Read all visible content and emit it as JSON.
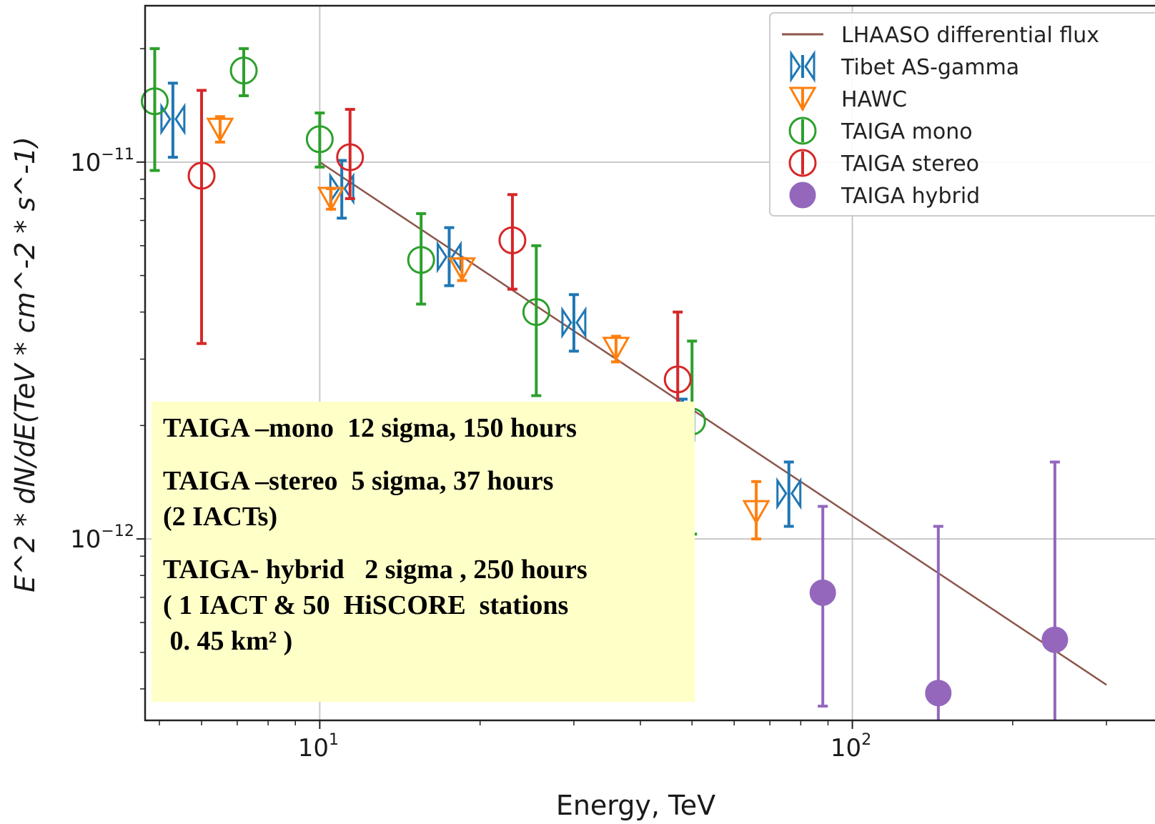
{
  "chart_data": {
    "type": "scatter",
    "xlabel": "Energy, TeV",
    "ylabel": "E^2 * dN/dE(TeV * cm^-2 * s^-1)",
    "xscale": "log",
    "yscale": "log",
    "xlim": [
      4.7,
      370
    ],
    "ylim": [
      3.3e-13,
      2.6e-11
    ],
    "xticks": [
      {
        "value": 10,
        "base": "10",
        "exp": "1"
      },
      {
        "value": 100,
        "base": "10",
        "exp": "2"
      }
    ],
    "yticks": [
      {
        "value": 1e-11,
        "base": "10",
        "exp": "−11"
      },
      {
        "value": 1e-12,
        "base": "10",
        "exp": "−12"
      }
    ],
    "grid": true,
    "legend_position": "top-right",
    "series": [
      {
        "name": "LHAASO differential flux",
        "kind": "line",
        "color": "#8c564b",
        "x": [
          10,
          300
        ],
        "y": [
          1e-11,
          4.1e-13
        ]
      },
      {
        "name": "Tibet AS-gamma",
        "kind": "tibet",
        "color": "#1f77b4",
        "points": [
          {
            "x": 5.3,
            "y": 1.3e-11,
            "lo": 1.03e-11,
            "hi": 1.62e-11
          },
          {
            "x": 11.0,
            "y": 8.5e-12,
            "lo": 7.1e-12,
            "hi": 1.01e-11
          },
          {
            "x": 17.5,
            "y": 5.6e-12,
            "lo": 4.7e-12,
            "hi": 6.7e-12
          },
          {
            "x": 30.0,
            "y": 3.75e-12,
            "lo": 3.15e-12,
            "hi": 4.45e-12
          },
          {
            "x": 48.0,
            "y": 2e-12,
            "lo": 1.72e-12,
            "hi": 2.35e-12
          },
          {
            "x": 76.0,
            "y": 1.32e-12,
            "lo": 1.08e-12,
            "hi": 1.6e-12
          }
        ]
      },
      {
        "name": "HAWC",
        "kind": "hawc",
        "color": "#ff7f0e",
        "points": [
          {
            "x": 6.5,
            "y": 1.22e-11,
            "lo": 1.13e-11,
            "hi": 1.32e-11
          },
          {
            "x": 10.5,
            "y": 8e-12,
            "lo": 7.5e-12,
            "hi": 8.5e-12
          },
          {
            "x": 18.5,
            "y": 5.2e-12,
            "lo": 4.85e-12,
            "hi": 5.55e-12
          },
          {
            "x": 36.0,
            "y": 3.2e-12,
            "lo": 2.95e-12,
            "hi": 3.45e-12
          },
          {
            "x": 66.0,
            "y": 1.18e-12,
            "lo": 1e-12,
            "hi": 1.42e-12
          }
        ]
      },
      {
        "name": "TAIGA mono",
        "kind": "open",
        "color": "#2ca02c",
        "points": [
          {
            "x": 4.9,
            "y": 1.45e-11,
            "lo": 9.5e-12,
            "hi": 2e-11
          },
          {
            "x": 7.2,
            "y": 1.75e-11,
            "lo": 1.5e-11,
            "hi": 2e-11
          },
          {
            "x": 10.0,
            "y": 1.15e-11,
            "lo": 9.7e-12,
            "hi": 1.35e-11
          },
          {
            "x": 15.5,
            "y": 5.5e-12,
            "lo": 4.2e-12,
            "hi": 7.3e-12
          },
          {
            "x": 25.5,
            "y": 4e-12,
            "lo": 2.4e-12,
            "hi": 6e-12
          },
          {
            "x": 50.0,
            "y": 2.05e-12,
            "lo": 1.03e-12,
            "hi": 3.35e-12
          }
        ]
      },
      {
        "name": "TAIGA stereo",
        "kind": "open",
        "color": "#d62728",
        "points": [
          {
            "x": 6.0,
            "y": 9.2e-12,
            "lo": 3.3e-12,
            "hi": 1.55e-11
          },
          {
            "x": 11.4,
            "y": 1.03e-11,
            "lo": 8e-12,
            "hi": 1.38e-11
          },
          {
            "x": 23.0,
            "y": 6.2e-12,
            "lo": 4.6e-12,
            "hi": 8.2e-12
          },
          {
            "x": 47.0,
            "y": 2.65e-12,
            "lo": 1.6e-12,
            "hi": 4e-12
          }
        ]
      },
      {
        "name": "TAIGA hybrid",
        "kind": "filled",
        "color": "#9467bd",
        "points": [
          {
            "x": 88.0,
            "y": 7.2e-13,
            "lo": 3.6e-13,
            "hi": 1.22e-12
          },
          {
            "x": 145.0,
            "y": 3.9e-13,
            "lo": 3.3e-13,
            "hi": 1.08e-12
          },
          {
            "x": 240.0,
            "y": 5.4e-13,
            "lo": 3.3e-13,
            "hi": 1.6e-12
          }
        ]
      }
    ]
  },
  "annotation": {
    "blocks": [
      [
        "TAIGA –mono  12 sigma, 150 hours"
      ],
      [
        "TAIGA –stereo  5 sigma, 37 hours",
        "(2 IACTs)"
      ],
      [
        "TAIGA- hybrid   2 sigma , 250 hours",
        "( 1 IACT & 50  HiSCORE  stations",
        " 0. 45 km² )"
      ]
    ]
  }
}
